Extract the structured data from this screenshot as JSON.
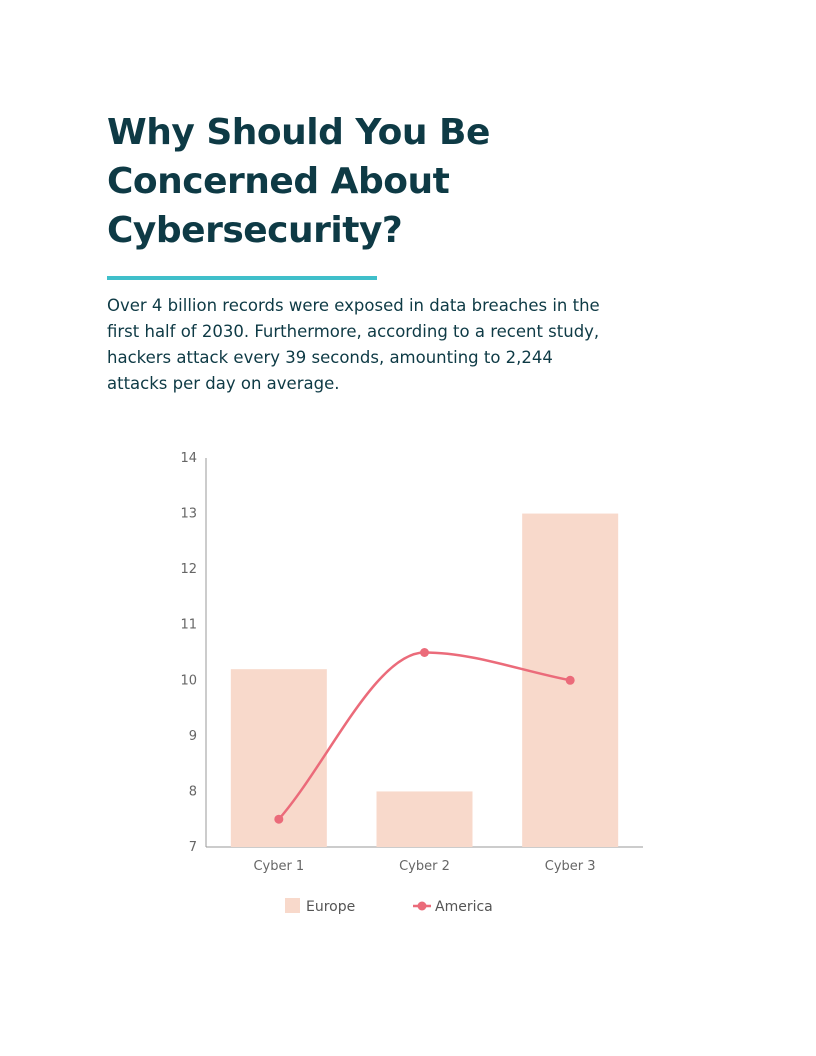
{
  "page": {
    "title": "Why Should You Be Concerned About Cybersecurity?",
    "body": "Over 4 billion records were exposed in data breaches in the first half of 2030. Furthermore, according to a recent study, hackers attack every 39 seconds, amounting to 2,244 attacks per day on average."
  },
  "colors": {
    "heading": "#0e3a45",
    "accent_rule": "#3fbfca",
    "bar": "#f8d9cb",
    "line": "#eb6b7a"
  },
  "chart_data": {
    "type": "bar",
    "title": "",
    "xlabel": "",
    "ylabel": "",
    "categories": [
      "Cyber 1",
      "Cyber 2",
      "Cyber 3"
    ],
    "ylim": [
      7,
      14
    ],
    "yticks": [
      7,
      8,
      9,
      10,
      11,
      12,
      13,
      14
    ],
    "series": [
      {
        "name": "Europe",
        "kind": "bar",
        "values": [
          10.2,
          8.0,
          13.0
        ]
      },
      {
        "name": "America",
        "kind": "line",
        "smooth": true,
        "values": [
          7.5,
          10.5,
          10.0
        ]
      }
    ],
    "legend": {
      "position": "bottom"
    },
    "grid": false
  }
}
